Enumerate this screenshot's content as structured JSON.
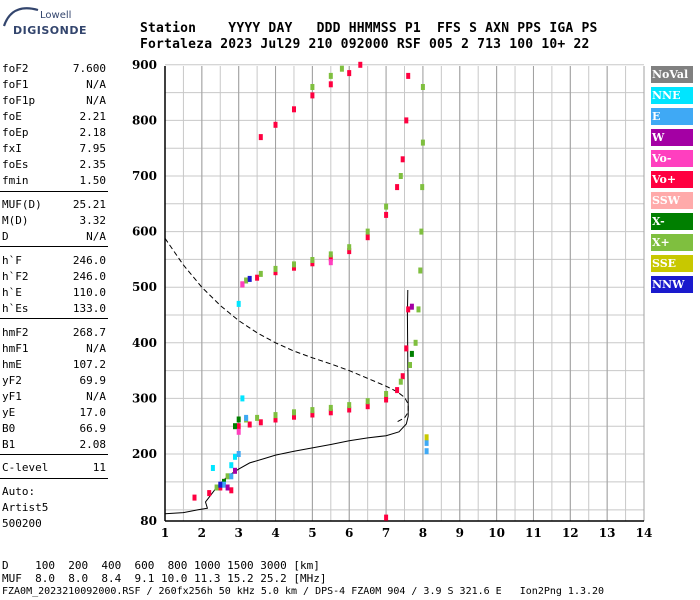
{
  "logo": {
    "top": "Lowell",
    "main": "DIGISONDE"
  },
  "header": {
    "line1": "Station    YYYY DAY   DDD HHMMSS P1  FFS S AXN PPS IGA PS",
    "line2": "Fortaleza 2023 Jul29 210 092000 RSF 005 2 713 100 10+ 22"
  },
  "params": [
    {
      "name": "foF2",
      "value": "7.600"
    },
    {
      "name": "foF1",
      "value": "N/A"
    },
    {
      "name": "foF1p",
      "value": "N/A"
    },
    {
      "name": "foE",
      "value": "2.21"
    },
    {
      "name": "foEp",
      "value": "2.18"
    },
    {
      "name": "fxI",
      "value": "7.95"
    },
    {
      "name": "foEs",
      "value": "2.35"
    },
    {
      "name": "fmin",
      "value": "1.50"
    },
    {
      "name": "MUF(D)",
      "value": "25.21"
    },
    {
      "name": "M(D)",
      "value": "3.32"
    },
    {
      "name": "D",
      "value": "N/A"
    },
    {
      "name": "h`F",
      "value": "246.0"
    },
    {
      "name": "h`F2",
      "value": "246.0"
    },
    {
      "name": "h`E",
      "value": "110.0"
    },
    {
      "name": "h`Es",
      "value": "133.0"
    },
    {
      "name": "hmF2",
      "value": "268.7"
    },
    {
      "name": "hmF1",
      "value": "N/A"
    },
    {
      "name": "hmE",
      "value": "107.2"
    },
    {
      "name": "yF2",
      "value": "69.9"
    },
    {
      "name": "yF1",
      "value": "N/A"
    },
    {
      "name": "yE",
      "value": "17.0"
    },
    {
      "name": "B0",
      "value": "66.9"
    },
    {
      "name": "B1",
      "value": "2.08"
    },
    {
      "name": "C-level",
      "value": "11"
    }
  ],
  "auto": [
    "Auto:",
    "Artist5",
    "500200"
  ],
  "legend": [
    {
      "label": "NoVal",
      "color": "#808080"
    },
    {
      "label": "NNE",
      "color": "#00e5ff"
    },
    {
      "label": "E",
      "color": "#3fa9f5"
    },
    {
      "label": "W",
      "color": "#a400a4"
    },
    {
      "label": "Vo-",
      "color": "#ff3fbf"
    },
    {
      "label": "Vo+",
      "color": "#ff0040"
    },
    {
      "label": "SSW",
      "color": "#ffaaaa"
    },
    {
      "label": "X-",
      "color": "#007f00"
    },
    {
      "label": "X+",
      "color": "#7fbf3f"
    },
    {
      "label": "SSE",
      "color": "#c8c800"
    },
    {
      "label": "NNW",
      "color": "#1a1acd"
    }
  ],
  "footer": {
    "d_line": "D    100  200  400  600  800 1000 1500 3000 [km]",
    "muf_line": "MUF  8.0  8.0  8.4  9.1 10.0 11.3 15.2 25.2 [MHz]",
    "info_line": "FZA0M_2023210092000.RSF / 260fx256h 50 kHz 5.0 km / DPS-4 FZA0M 904 / 3.9 S 321.6 E   Ion2Png 1.3.20"
  },
  "chart_data": {
    "type": "scatter",
    "title": "",
    "xlabel": "",
    "ylabel": "",
    "xlim": [
      1,
      14
    ],
    "ylim": [
      80,
      900
    ],
    "x_ticks": [
      1,
      2,
      3,
      4,
      5,
      6,
      7,
      8,
      9,
      10,
      11,
      12,
      13,
      14
    ],
    "y_ticks": [
      80,
      200,
      300,
      400,
      500,
      600,
      700,
      800,
      900
    ],
    "grid": true,
    "legend_position": "right",
    "series": [
      {
        "name": "Vo+",
        "color": "#ff0040",
        "points": [
          [
            3.0,
            250
          ],
          [
            3.3,
            253
          ],
          [
            3.6,
            257
          ],
          [
            4.0,
            262
          ],
          [
            4.5,
            267
          ],
          [
            5.0,
            271
          ],
          [
            5.5,
            275
          ],
          [
            6.0,
            280
          ],
          [
            6.5,
            286
          ],
          [
            7.0,
            298
          ],
          [
            7.3,
            315
          ],
          [
            7.45,
            340
          ],
          [
            7.55,
            390
          ],
          [
            7.6,
            460
          ],
          [
            3.1,
            505
          ],
          [
            3.5,
            517
          ],
          [
            4.0,
            527
          ],
          [
            4.5,
            535
          ],
          [
            5.0,
            543
          ],
          [
            5.5,
            552
          ],
          [
            6.0,
            565
          ],
          [
            6.5,
            590
          ],
          [
            7.0,
            630
          ],
          [
            7.3,
            680
          ],
          [
            7.45,
            730
          ],
          [
            7.55,
            800
          ],
          [
            3.6,
            770
          ],
          [
            4.0,
            792
          ],
          [
            4.5,
            820
          ],
          [
            5.0,
            845
          ],
          [
            5.5,
            865
          ],
          [
            6.0,
            885
          ],
          [
            6.3,
            900
          ],
          [
            1.8,
            122
          ],
          [
            2.2,
            130
          ],
          [
            2.5,
            140
          ],
          [
            2.6,
            150
          ],
          [
            2.8,
            135
          ],
          [
            7.0,
            86
          ],
          [
            7.6,
            880
          ]
        ]
      },
      {
        "name": "X+",
        "color": "#7fbf3f",
        "points": [
          [
            3.2,
            262
          ],
          [
            3.5,
            265
          ],
          [
            4.0,
            270
          ],
          [
            4.5,
            275
          ],
          [
            5.0,
            279
          ],
          [
            5.5,
            283
          ],
          [
            6.0,
            288
          ],
          [
            6.5,
            295
          ],
          [
            7.0,
            308
          ],
          [
            7.4,
            330
          ],
          [
            7.65,
            360
          ],
          [
            7.8,
            400
          ],
          [
            7.88,
            460
          ],
          [
            7.93,
            530
          ],
          [
            7.96,
            600
          ],
          [
            7.98,
            680
          ],
          [
            8.0,
            760
          ],
          [
            8.0,
            860
          ],
          [
            3.2,
            512
          ],
          [
            3.6,
            524
          ],
          [
            4.0,
            533
          ],
          [
            4.5,
            541
          ],
          [
            5.0,
            549
          ],
          [
            5.5,
            559
          ],
          [
            6.0,
            572
          ],
          [
            6.5,
            600
          ],
          [
            7.0,
            645
          ],
          [
            7.4,
            700
          ],
          [
            5.0,
            860
          ],
          [
            5.5,
            880
          ],
          [
            5.8,
            893
          ],
          [
            2.4,
            140
          ],
          [
            2.7,
            160
          ]
        ]
      },
      {
        "name": "X-",
        "color": "#007f00",
        "points": [
          [
            2.9,
            250
          ],
          [
            3.0,
            262
          ],
          [
            7.7,
            380
          ],
          [
            2.6,
            150
          ]
        ]
      },
      {
        "name": "NNE",
        "color": "#00e5ff",
        "points": [
          [
            2.8,
            180
          ],
          [
            2.9,
            195
          ],
          [
            3.1,
            300
          ],
          [
            3.0,
            470
          ],
          [
            2.3,
            175
          ]
        ]
      },
      {
        "name": "E",
        "color": "#3fa9f5",
        "points": [
          [
            2.6,
            145
          ],
          [
            2.8,
            160
          ],
          [
            3.0,
            200
          ],
          [
            3.2,
            265
          ],
          [
            8.1,
            205
          ],
          [
            8.1,
            220
          ]
        ]
      },
      {
        "name": "W",
        "color": "#a400a4",
        "points": [
          [
            2.7,
            140
          ],
          [
            2.9,
            170
          ],
          [
            7.7,
            465
          ]
        ]
      },
      {
        "name": "Vo-",
        "color": "#ff3fbf",
        "points": [
          [
            3.0,
            240
          ],
          [
            3.1,
            505
          ],
          [
            5.5,
            545
          ]
        ]
      },
      {
        "name": "SSE",
        "color": "#c8c800",
        "points": [
          [
            8.1,
            230
          ]
        ]
      },
      {
        "name": "NNW",
        "color": "#1a1acd",
        "points": [
          [
            2.5,
            145
          ],
          [
            3.3,
            515
          ]
        ]
      }
    ],
    "curves": {
      "dashed": [
        [
          1,
          588
        ],
        [
          1.5,
          540
        ],
        [
          2,
          500
        ],
        [
          2.5,
          467
        ],
        [
          3,
          440
        ],
        [
          3.5,
          418
        ],
        [
          4,
          400
        ],
        [
          4.5,
          385
        ],
        [
          5,
          373
        ],
        [
          5.5,
          362
        ],
        [
          6,
          350
        ],
        [
          6.5,
          336
        ],
        [
          7,
          322
        ],
        [
          7.3,
          312
        ],
        [
          7.5,
          302
        ],
        [
          7.6,
          290
        ],
        [
          7.6,
          275
        ],
        [
          7.5,
          265
        ],
        [
          7.3,
          258
        ]
      ],
      "solid": [
        [
          1,
          93
        ],
        [
          1.5,
          95
        ],
        [
          1.9,
          100
        ],
        [
          2.15,
          103
        ],
        [
          2.1,
          114
        ],
        [
          2.4,
          140
        ],
        [
          2.7,
          160
        ],
        [
          3.0,
          173
        ],
        [
          3.3,
          184
        ],
        [
          3.7,
          192
        ],
        [
          4.0,
          198
        ],
        [
          4.5,
          205
        ],
        [
          5.0,
          211
        ],
        [
          5.5,
          217
        ],
        [
          6.0,
          224
        ],
        [
          6.5,
          229
        ],
        [
          7.0,
          233
        ],
        [
          7.35,
          240
        ],
        [
          7.55,
          254
        ],
        [
          7.6,
          268
        ],
        [
          7.6,
          290
        ],
        [
          7.58,
          450
        ],
        [
          7.59,
          495
        ]
      ]
    }
  }
}
